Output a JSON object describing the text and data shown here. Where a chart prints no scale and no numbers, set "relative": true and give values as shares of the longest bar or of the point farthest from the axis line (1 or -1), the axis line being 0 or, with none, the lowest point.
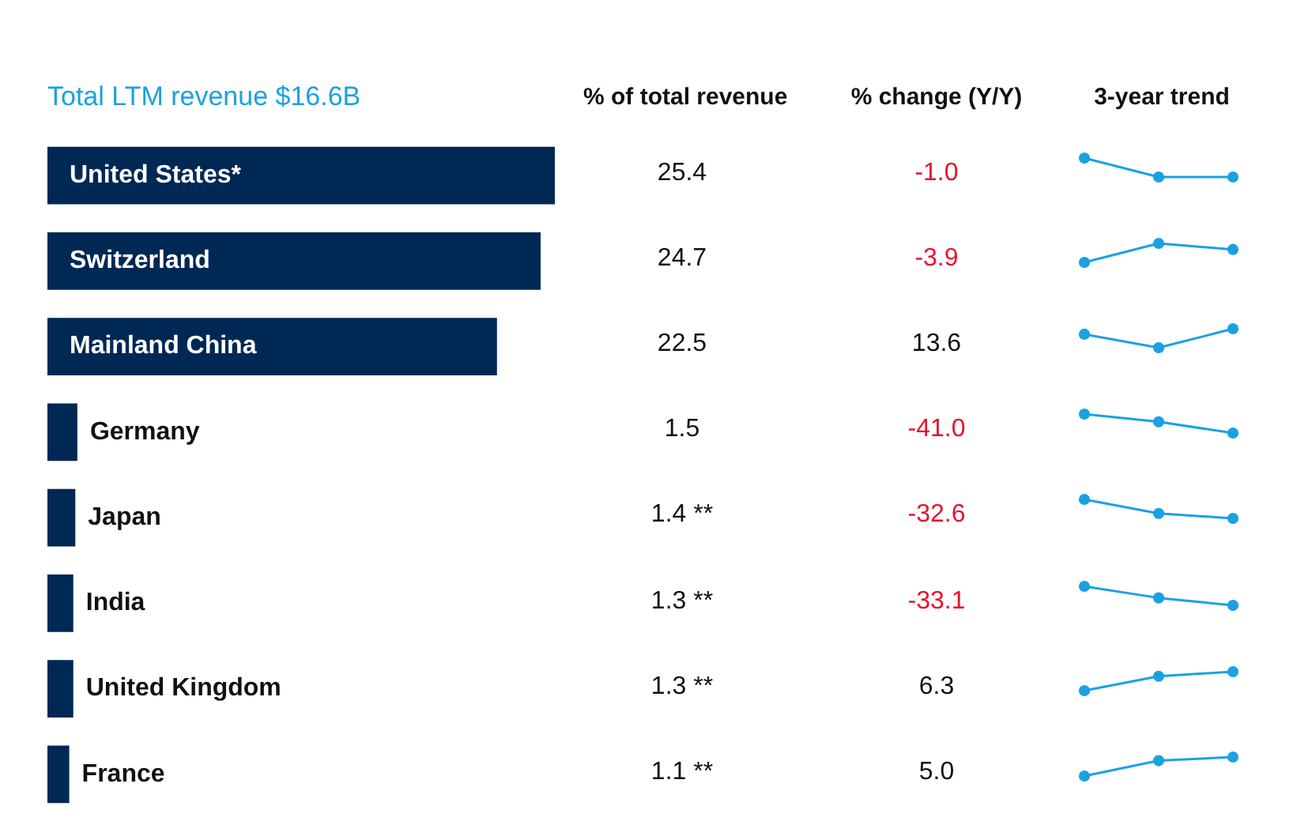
{
  "chart_data": [
    {
      "type": "bar",
      "orientation": "horizontal",
      "title": "Total LTM revenue $16.6B",
      "categories": [
        "United States*",
        "Switzerland",
        "Mainland China",
        "Germany",
        "Japan",
        "India",
        "United Kingdom",
        "France"
      ],
      "values": [
        1,
        0.972,
        0.886,
        0.059,
        0.055,
        0.051,
        0.051,
        0.043
      ],
      "relative": true,
      "color": "#002855"
    },
    {
      "type": "other",
      "title": "% of total revenue",
      "values": [
        25.4,
        24.7,
        22.5,
        1.5,
        1.4,
        1.3,
        1.3,
        1.1
      ],
      "value_labels": [
        "25.4",
        "24.7",
        "22.5",
        "1.5",
        "1.4 **",
        "1.3 **",
        "1.3 **",
        "1.1 **"
      ]
    },
    {
      "type": "other",
      "title": "% change (Y/Y)",
      "values": [
        -1.0,
        -3.9,
        13.6,
        -41.0,
        -32.6,
        -33.1,
        6.3,
        5.0
      ],
      "value_labels": [
        "-1.0",
        "-3.9",
        "13.6",
        "-41.0",
        "-32.6",
        "-33.1",
        "6.3",
        "5.0"
      ],
      "colors": [
        "#e8112d",
        "#e8112d",
        "#111111",
        "#e8112d",
        "#e8112d",
        "#e8112d",
        "#111111",
        "#111111"
      ]
    },
    {
      "type": "line",
      "title": "3-year trend",
      "categories": [
        null,
        null,
        null
      ],
      "values": [
        1,
        0,
        0
      ],
      "relative": true,
      "color": "#1ba1e2",
      "marker": "circle"
    },
    {
      "type": "line",
      "categories": [
        null,
        null,
        null
      ],
      "values": [
        0,
        1,
        0.68
      ],
      "relative": true,
      "color": "#1ba1e2",
      "marker": "circle"
    },
    {
      "type": "line",
      "categories": [
        null,
        null,
        null
      ],
      "values": [
        0.71,
        0,
        1
      ],
      "relative": true,
      "color": "#1ba1e2",
      "marker": "circle"
    },
    {
      "type": "line",
      "categories": [
        null,
        null,
        null
      ],
      "values": [
        1,
        0.59,
        0
      ],
      "relative": true,
      "color": "#1ba1e2",
      "marker": "circle"
    },
    {
      "type": "line",
      "categories": [
        null,
        null,
        null
      ],
      "values": [
        1,
        0.26,
        0
      ],
      "relative": true,
      "color": "#1ba1e2",
      "marker": "circle"
    },
    {
      "type": "line",
      "categories": [
        null,
        null,
        null
      ],
      "values": [
        1,
        0.39,
        0
      ],
      "relative": true,
      "color": "#1ba1e2",
      "marker": "circle"
    },
    {
      "type": "line",
      "categories": [
        null,
        null,
        null
      ],
      "values": [
        0,
        0.76,
        1
      ],
      "relative": true,
      "color": "#1ba1e2",
      "marker": "circle"
    },
    {
      "type": "line",
      "categories": [
        null,
        null,
        null
      ],
      "values": [
        0,
        0.81,
        1
      ],
      "relative": true,
      "color": "#1ba1e2",
      "marker": "circle"
    }
  ]
}
